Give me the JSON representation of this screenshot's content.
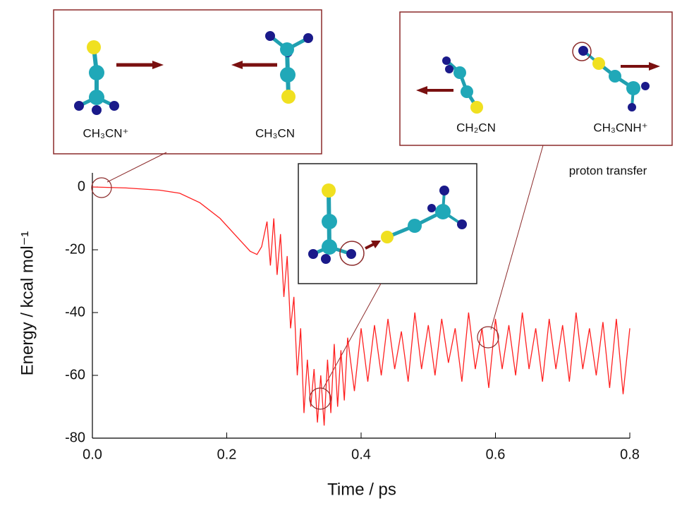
{
  "chart_data": {
    "type": "line",
    "xlabel": "Time / ps",
    "ylabel": "Energy / kcal mol⁻¹",
    "color": "#ff2020",
    "xlim": [
      0,
      0.8
    ],
    "ylim": [
      -80,
      4.5
    ],
    "xticks": [
      {
        "value": 0,
        "label": "0.0"
      },
      0.2,
      0.4,
      0.6,
      0.8
    ],
    "yticks": [
      0,
      -20,
      -40,
      -60,
      -80
    ],
    "annotations": [
      "CH₃CN⁺",
      "CH₃CN",
      "CH₂CN",
      "CH₃CNH⁺",
      "proton transfer"
    ],
    "x": [
      0,
      0.05,
      0.1,
      0.13,
      0.16,
      0.19,
      0.22,
      0.235,
      0.245,
      0.252,
      0.26,
      0.265,
      0.27,
      0.275,
      0.28,
      0.285,
      0.29,
      0.295,
      0.3,
      0.305,
      0.31,
      0.315,
      0.32,
      0.325,
      0.33,
      0.335,
      0.34,
      0.345,
      0.35,
      0.355,
      0.36,
      0.365,
      0.37,
      0.375,
      0.38,
      0.39,
      0.4,
      0.41,
      0.42,
      0.43,
      0.44,
      0.45,
      0.46,
      0.47,
      0.48,
      0.49,
      0.5,
      0.51,
      0.52,
      0.53,
      0.54,
      0.55,
      0.56,
      0.57,
      0.58,
      0.59,
      0.6,
      0.61,
      0.62,
      0.63,
      0.64,
      0.65,
      0.66,
      0.67,
      0.68,
      0.69,
      0.7,
      0.71,
      0.72,
      0.73,
      0.74,
      0.75,
      0.76,
      0.77,
      0.78,
      0.79,
      0.8
    ],
    "values": [
      0,
      -0.3,
      -1,
      -2,
      -5,
      -10,
      -17,
      -20.5,
      -21.5,
      -19,
      -11,
      -25,
      -10,
      -28,
      -15,
      -35,
      -22,
      -45,
      -35,
      -60,
      -45,
      -72,
      -55,
      -70,
      -58,
      -75,
      -60,
      -76,
      -55,
      -72,
      -50,
      -70,
      -52,
      -68,
      -48,
      -65,
      -45,
      -62,
      -44,
      -60,
      -42,
      -58,
      -46,
      -62,
      -40,
      -58,
      -44,
      -60,
      -42,
      -56,
      -45,
      -62,
      -40,
      -58,
      -45,
      -64,
      -42,
      -58,
      -44,
      -60,
      -40,
      -58,
      -45,
      -62,
      -42,
      -58,
      -44,
      -62,
      -40,
      -58,
      -45,
      -60,
      -43,
      -64,
      -42,
      -66,
      -45
    ]
  }
}
